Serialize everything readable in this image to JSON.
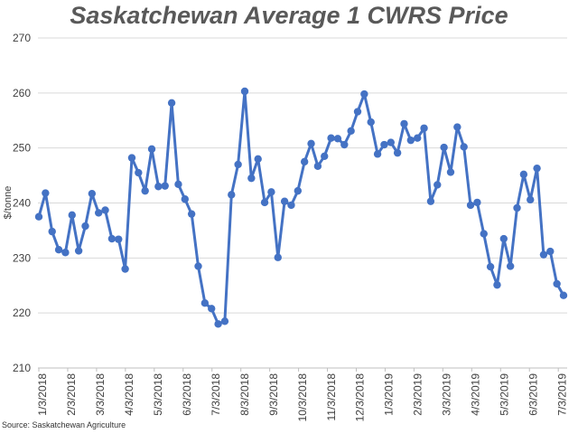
{
  "chart_data": {
    "type": "line",
    "title": "Saskatchewan Average 1 CWRS Price",
    "xlabel": "",
    "ylabel": "$/tonne",
    "ylim": [
      210,
      270
    ],
    "yticks": [
      210,
      220,
      230,
      240,
      250,
      260,
      270
    ],
    "xtick_labels": [
      "1/3/2018",
      "2/3/2018",
      "3/3/2018",
      "4/3/2018",
      "5/3/2018",
      "6/3/2018",
      "7/3/2018",
      "8/3/2018",
      "9/3/2018",
      "10/3/2018",
      "11/3/2018",
      "12/3/2018",
      "1/3/2019",
      "2/3/2019",
      "3/3/2019",
      "4/3/2019",
      "5/3/2019",
      "6/3/2019",
      "7/3/2019"
    ],
    "grid": "horizontal",
    "legend": "none",
    "colors": {
      "line": "#4472C4",
      "grid": "#D9D9D9",
      "title": "#595959"
    },
    "series": [
      {
        "values": [
          237.5,
          241.8,
          234.8,
          231.5,
          231.0,
          237.8,
          231.3,
          235.8,
          241.7,
          238.2,
          238.7,
          233.5,
          233.4,
          228.0,
          248.2,
          245.5,
          242.2,
          249.8,
          243.0,
          243.1,
          258.2,
          243.4,
          240.7,
          238.0,
          228.5,
          221.8,
          220.8,
          218.0,
          218.5,
          241.5,
          247.0,
          260.3,
          244.5,
          248.0,
          240.1,
          242.0,
          230.1,
          240.3,
          239.6,
          242.2,
          247.5,
          250.8,
          246.7,
          248.5,
          251.8,
          251.7,
          250.6,
          253.1,
          256.6,
          259.8,
          254.7,
          248.9,
          250.6,
          251.0,
          249.1,
          254.4,
          251.4,
          251.8,
          253.6,
          240.3,
          243.3,
          250.1,
          245.6,
          253.8,
          250.2,
          239.6,
          240.1,
          234.4,
          228.4,
          225.1,
          233.5,
          228.5,
          239.1,
          245.2,
          240.6,
          246.3,
          230.6,
          231.2,
          225.3,
          223.2
        ]
      }
    ]
  },
  "source": "Source: Saskatchewan Agriculture"
}
